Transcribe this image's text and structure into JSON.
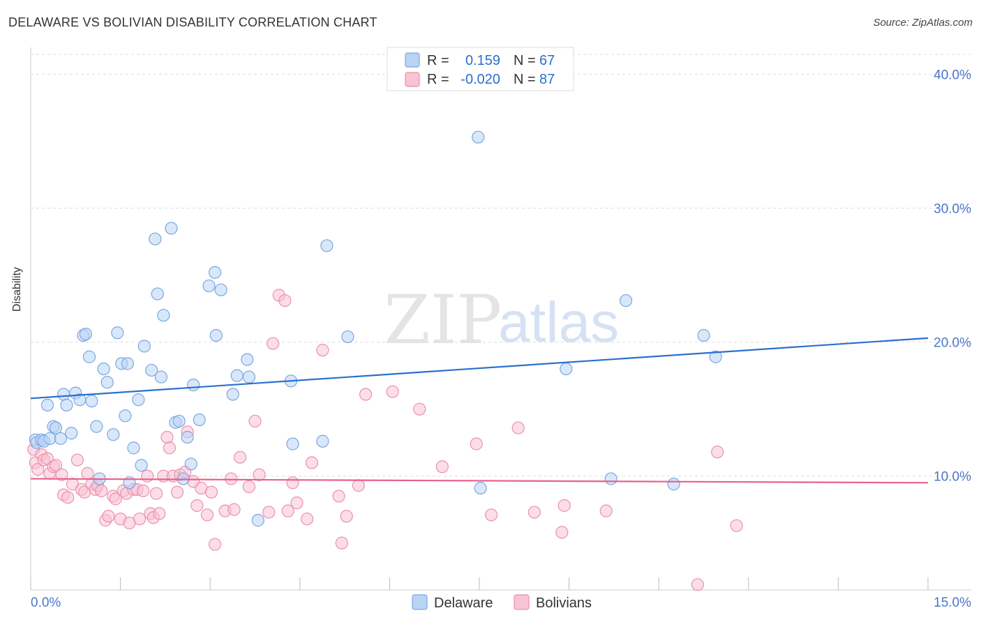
{
  "title": "DELAWARE VS BOLIVIAN DISABILITY CORRELATION CHART",
  "source": "Source: ZipAtlas.com",
  "watermark": {
    "zip": "ZIP",
    "atlas": "atlas"
  },
  "colors": {
    "delaware_fill": "#b9d3f5",
    "delaware_stroke": "#7aa7e0",
    "delaware_line": "#2a6fcf",
    "bolivians_fill": "#f8c3d3",
    "bolivians_stroke": "#ee8fae",
    "bolivians_line": "#e8608b",
    "tick_label": "#4a76c9",
    "grid": "#dddddd"
  },
  "legend_top": {
    "rows": [
      {
        "r_label": "R =",
        "r_value": "0.159",
        "n_label": "N =",
        "n_value": "67"
      },
      {
        "r_label": "R =",
        "r_value": "-0.020",
        "n_label": "N =",
        "n_value": "87"
      }
    ]
  },
  "legend_bottom": [
    "Delaware",
    "Bolivians"
  ],
  "chart_data": {
    "type": "scatter",
    "title": "DELAWARE VS BOLIVIAN DISABILITY CORRELATION CHART",
    "xlabel": "",
    "ylabel": "Disability",
    "xlim": [
      0,
      15
    ],
    "ylim": [
      1.5,
      42
    ],
    "x_tick_labels": [
      "0.0%",
      "15.0%"
    ],
    "y_ticks": [
      10,
      20,
      30,
      40
    ],
    "y_tick_labels": [
      "10.0%",
      "20.0%",
      "30.0%",
      "40.0%"
    ],
    "grid": true,
    "legend_position": "top-center",
    "series": [
      {
        "name": "Delaware",
        "trend": {
          "x0": 0,
          "y0": 15.8,
          "x1": 15,
          "y1": 20.3
        },
        "points": [
          [
            0.08,
            12.7
          ],
          [
            0.1,
            12.5
          ],
          [
            0.18,
            12.7
          ],
          [
            0.22,
            12.6
          ],
          [
            0.28,
            15.3
          ],
          [
            0.32,
            12.8
          ],
          [
            0.38,
            13.7
          ],
          [
            0.42,
            13.6
          ],
          [
            0.5,
            12.8
          ],
          [
            0.55,
            16.1
          ],
          [
            0.6,
            15.3
          ],
          [
            0.68,
            13.2
          ],
          [
            0.75,
            16.2
          ],
          [
            0.82,
            15.7
          ],
          [
            0.88,
            20.5
          ],
          [
            0.92,
            20.6
          ],
          [
            0.98,
            18.9
          ],
          [
            1.02,
            15.6
          ],
          [
            1.1,
            13.7
          ],
          [
            1.15,
            9.8
          ],
          [
            1.22,
            18.0
          ],
          [
            1.28,
            17.0
          ],
          [
            1.38,
            13.1
          ],
          [
            1.45,
            20.7
          ],
          [
            1.52,
            18.4
          ],
          [
            1.58,
            14.5
          ],
          [
            1.62,
            18.4
          ],
          [
            1.65,
            9.5
          ],
          [
            1.72,
            12.1
          ],
          [
            1.8,
            15.7
          ],
          [
            1.85,
            10.8
          ],
          [
            1.9,
            19.7
          ],
          [
            2.02,
            17.9
          ],
          [
            2.08,
            27.7
          ],
          [
            2.12,
            23.6
          ],
          [
            2.18,
            17.4
          ],
          [
            2.22,
            22.0
          ],
          [
            2.35,
            28.5
          ],
          [
            2.42,
            14.0
          ],
          [
            2.48,
            14.1
          ],
          [
            2.55,
            9.8
          ],
          [
            2.62,
            12.9
          ],
          [
            2.68,
            10.9
          ],
          [
            2.72,
            16.8
          ],
          [
            2.82,
            14.2
          ],
          [
            2.98,
            24.2
          ],
          [
            3.08,
            25.2
          ],
          [
            3.1,
            20.5
          ],
          [
            3.18,
            23.9
          ],
          [
            3.38,
            16.1
          ],
          [
            3.45,
            17.5
          ],
          [
            3.62,
            18.7
          ],
          [
            3.65,
            17.4
          ],
          [
            3.8,
            6.7
          ],
          [
            4.35,
            17.1
          ],
          [
            4.38,
            12.4
          ],
          [
            4.88,
            12.6
          ],
          [
            4.95,
            27.2
          ],
          [
            5.3,
            20.4
          ],
          [
            7.48,
            35.3
          ],
          [
            7.52,
            9.1
          ],
          [
            8.95,
            18.0
          ],
          [
            9.7,
            9.8
          ],
          [
            9.95,
            23.1
          ],
          [
            10.75,
            9.4
          ],
          [
            11.25,
            20.5
          ],
          [
            11.45,
            18.9
          ]
        ]
      },
      {
        "name": "Bolivians",
        "trend": {
          "x0": 0,
          "y0": 9.8,
          "x1": 15,
          "y1": 9.5
        },
        "points": [
          [
            0.05,
            12.0
          ],
          [
            0.08,
            11.0
          ],
          [
            0.12,
            10.5
          ],
          [
            0.18,
            11.6
          ],
          [
            0.22,
            11.2
          ],
          [
            0.28,
            11.3
          ],
          [
            0.32,
            10.2
          ],
          [
            0.38,
            10.7
          ],
          [
            0.42,
            10.8
          ],
          [
            0.52,
            10.1
          ],
          [
            0.55,
            8.6
          ],
          [
            0.62,
            8.4
          ],
          [
            0.7,
            9.4
          ],
          [
            0.78,
            11.2
          ],
          [
            0.85,
            9.0
          ],
          [
            0.9,
            8.8
          ],
          [
            0.95,
            10.2
          ],
          [
            1.02,
            9.4
          ],
          [
            1.08,
            9.0
          ],
          [
            1.12,
            9.3
          ],
          [
            1.18,
            8.9
          ],
          [
            1.25,
            6.7
          ],
          [
            1.3,
            7.0
          ],
          [
            1.38,
            8.5
          ],
          [
            1.42,
            8.3
          ],
          [
            1.5,
            6.8
          ],
          [
            1.55,
            8.9
          ],
          [
            1.6,
            8.7
          ],
          [
            1.65,
            6.5
          ],
          [
            1.72,
            9.0
          ],
          [
            1.78,
            9.0
          ],
          [
            1.82,
            6.8
          ],
          [
            1.88,
            8.9
          ],
          [
            1.95,
            10.0
          ],
          [
            2.0,
            7.2
          ],
          [
            2.05,
            6.9
          ],
          [
            2.1,
            8.7
          ],
          [
            2.15,
            7.2
          ],
          [
            2.22,
            10.0
          ],
          [
            2.28,
            12.9
          ],
          [
            2.32,
            12.1
          ],
          [
            2.38,
            10.0
          ],
          [
            2.45,
            8.8
          ],
          [
            2.5,
            10.1
          ],
          [
            2.58,
            10.3
          ],
          [
            2.62,
            13.3
          ],
          [
            2.72,
            9.6
          ],
          [
            2.78,
            7.8
          ],
          [
            2.85,
            9.1
          ],
          [
            2.95,
            7.1
          ],
          [
            3.02,
            8.8
          ],
          [
            3.08,
            4.9
          ],
          [
            3.25,
            7.4
          ],
          [
            3.35,
            9.8
          ],
          [
            3.4,
            7.5
          ],
          [
            3.5,
            11.4
          ],
          [
            3.65,
            9.2
          ],
          [
            3.75,
            14.1
          ],
          [
            3.82,
            10.1
          ],
          [
            3.98,
            7.3
          ],
          [
            4.05,
            19.9
          ],
          [
            4.15,
            23.5
          ],
          [
            4.25,
            23.1
          ],
          [
            4.3,
            7.4
          ],
          [
            4.38,
            9.5
          ],
          [
            4.45,
            8.0
          ],
          [
            4.62,
            6.8
          ],
          [
            4.7,
            11.0
          ],
          [
            4.88,
            19.4
          ],
          [
            5.15,
            8.5
          ],
          [
            5.2,
            5.0
          ],
          [
            5.28,
            7.0
          ],
          [
            5.48,
            9.3
          ],
          [
            5.6,
            16.1
          ],
          [
            6.05,
            16.3
          ],
          [
            6.5,
            15.0
          ],
          [
            6.88,
            10.7
          ],
          [
            7.45,
            12.4
          ],
          [
            7.7,
            7.1
          ],
          [
            8.15,
            13.6
          ],
          [
            8.42,
            7.3
          ],
          [
            8.88,
            5.8
          ],
          [
            8.92,
            7.8
          ],
          [
            9.62,
            7.4
          ],
          [
            11.15,
            1.9
          ],
          [
            11.48,
            11.8
          ],
          [
            11.8,
            6.3
          ]
        ]
      }
    ]
  }
}
